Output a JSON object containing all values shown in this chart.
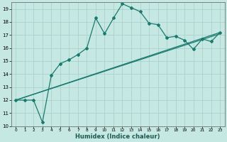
{
  "xlabel": "Humidex (Indice chaleur)",
  "background_color": "#c5e8e3",
  "grid_color": "#a8cdc8",
  "line_color": "#1a7a6e",
  "xlim": [
    -0.5,
    23.5
  ],
  "ylim": [
    10,
    19.5
  ],
  "xticks": [
    0,
    1,
    2,
    3,
    4,
    5,
    6,
    7,
    8,
    9,
    10,
    11,
    12,
    13,
    14,
    15,
    16,
    17,
    18,
    19,
    20,
    21,
    22,
    23
  ],
  "yticks": [
    10,
    11,
    12,
    13,
    14,
    15,
    16,
    17,
    18,
    19
  ],
  "line1_x": [
    0,
    1,
    2,
    3,
    4,
    5,
    6,
    7,
    8,
    9,
    10,
    11,
    12,
    13,
    14,
    15,
    16,
    17,
    18,
    19,
    20,
    21,
    22,
    23
  ],
  "line1_y": [
    12,
    12,
    12,
    10.3,
    13.9,
    14.8,
    15.1,
    15.5,
    16.0,
    18.3,
    17.1,
    18.3,
    19.4,
    19.1,
    18.8,
    17.9,
    17.8,
    16.8,
    16.9,
    16.6,
    15.9,
    16.7,
    16.5,
    17.2
  ],
  "line2_x": [
    0,
    23
  ],
  "line2_y": [
    12,
    17.1
  ],
  "line3_x": [
    0,
    23
  ],
  "line3_y": [
    12,
    17.2
  ]
}
